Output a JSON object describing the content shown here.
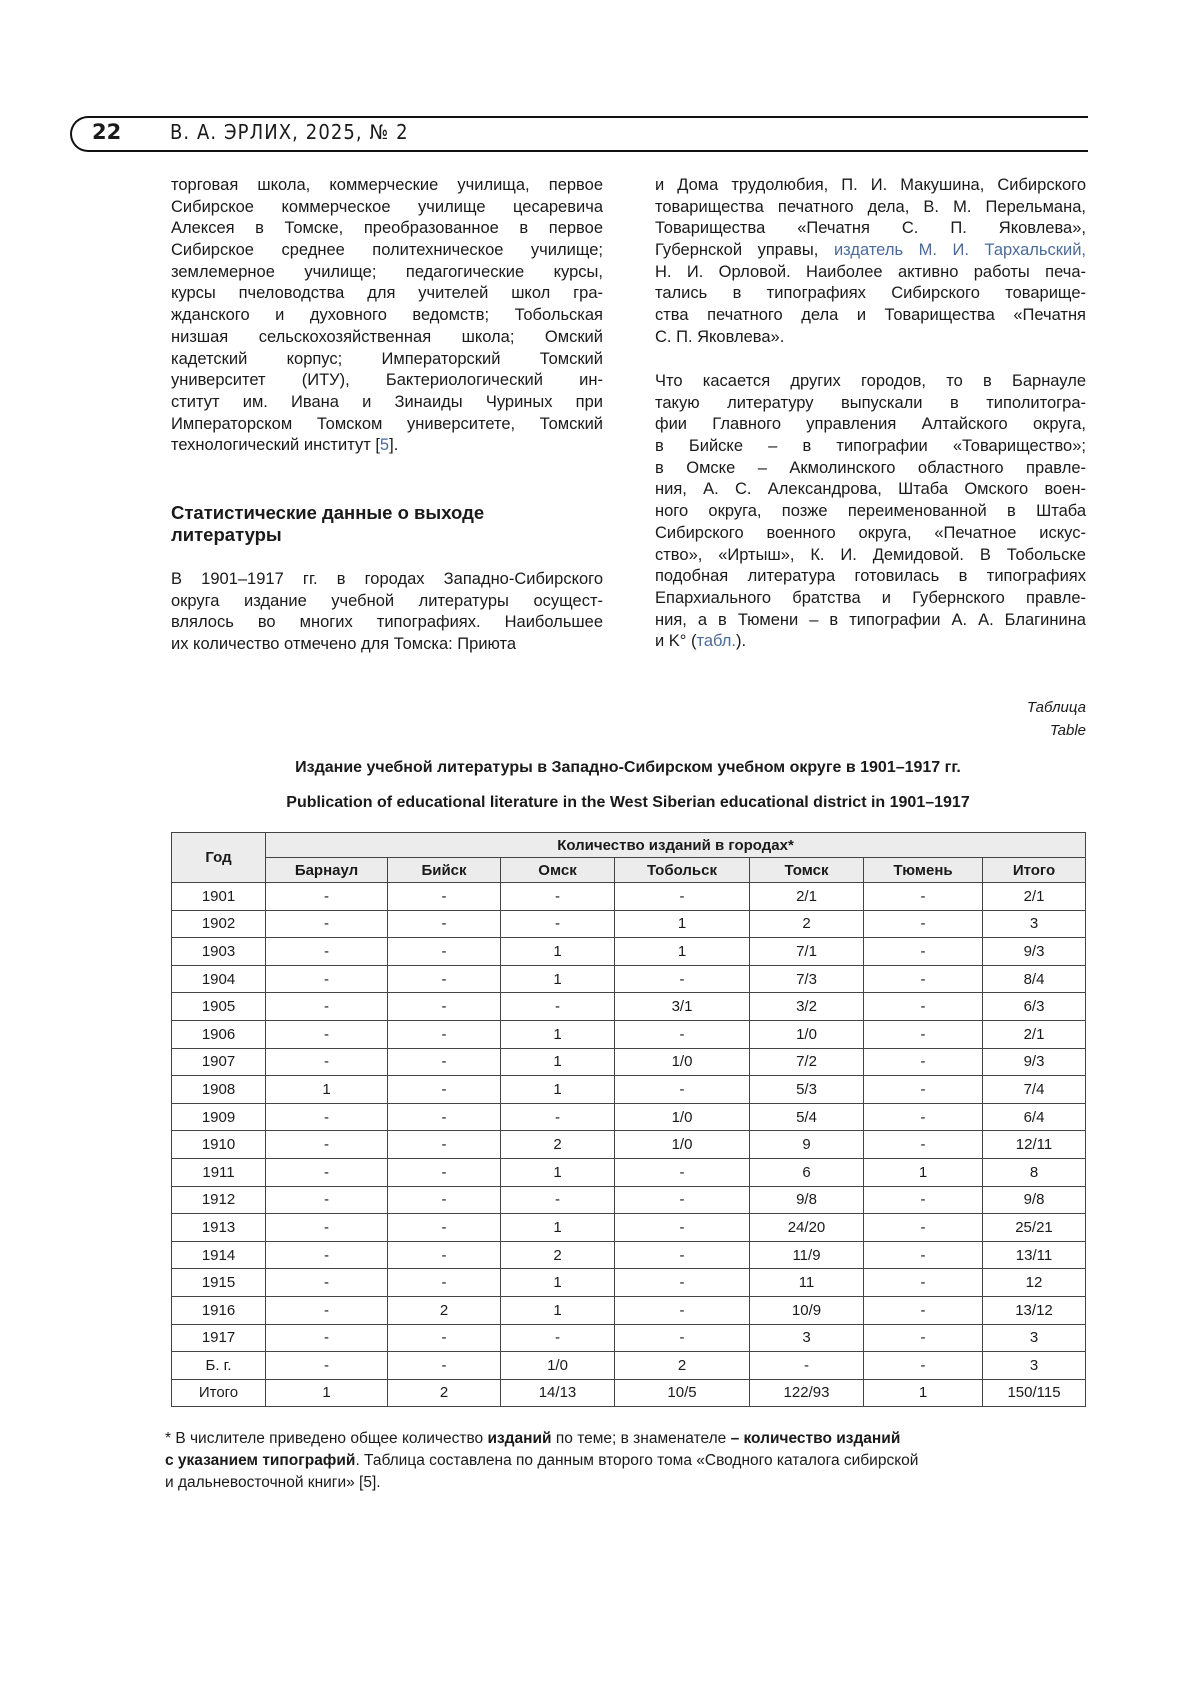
{
  "header": {
    "page_number": "22",
    "running_title": "В. А. ЭРЛИХ, 2025, № 2"
  },
  "left_column": {
    "p1": [
      [
        {
          "t": "торговая школа, коммерческие училища, первое"
        }
      ],
      [
        {
          "t": "Сибирское коммерческое училище цесаревича"
        }
      ],
      [
        {
          "t": "Алексея в Томске, преобразованное в первое"
        }
      ],
      [
        {
          "t": "Сибирское среднее политехническое училище;"
        }
      ],
      [
        {
          "t": "землемерное училище; педагогические курсы,"
        }
      ],
      [
        {
          "t": "курсы пчеловодства для учителей школ гра-"
        }
      ],
      [
        {
          "t": "жданского и духовного ведомств; Тобольская"
        }
      ],
      [
        {
          "t": "низшая сельскохозяйственная школа; Омский"
        }
      ],
      [
        {
          "t": "кадетский корпус; Императорский Томский"
        }
      ],
      [
        {
          "t": "университет (ИТУ), Бактериологический ин-"
        }
      ],
      [
        {
          "t": "ститут им. Ивана и Зинаиды Чуриных при"
        }
      ],
      [
        {
          "t": "Императорском Томском университете, Томский"
        }
      ],
      [
        {
          "t": "технологический институт ["
        },
        {
          "t": "5",
          "link": true
        },
        {
          "t": "]."
        }
      ]
    ],
    "heading": [
      "Статистические данные о выходе",
      "литературы"
    ],
    "p2": [
      [
        {
          "t": "В 1901–1917 гг. в городах Западно-Сибирского"
        }
      ],
      [
        {
          "t": "округа издание учебной литературы осущест-"
        }
      ],
      [
        {
          "t": "влялось во многих типографиях. Наибольшее"
        }
      ],
      [
        {
          "t": "их количество отмечено для Томска: Приюта"
        }
      ]
    ]
  },
  "right_column": {
    "p1": [
      [
        {
          "t": "и Дома трудолюбия, П. И. Макушина, Сибирского"
        }
      ],
      [
        {
          "t": "товарищества печатного дела, В. М. Перельмана,"
        }
      ],
      [
        {
          "t": "Товарищества «Печатня С. П. Яковлева»,"
        }
      ],
      [
        {
          "t": "Губернской управы, "
        },
        {
          "t": "издатель М. И. Тархальский,",
          "link": true
        }
      ],
      [
        {
          "t": "Н. И. Орловой. Наиболее активно работы печа-"
        }
      ],
      [
        {
          "t": "тались в типографиях Сибирского товарище-"
        }
      ],
      [
        {
          "t": "ства печатного дела и Товарищества «Печатня"
        }
      ],
      [
        {
          "t": "С. П. Яковлева»."
        }
      ]
    ],
    "p2": [
      [
        {
          "t": "Что касается других городов, то в Барнауле"
        }
      ],
      [
        {
          "t": "такую литературу выпускали в типолитогра-"
        }
      ],
      [
        {
          "t": "фии Главного управления Алтайского округа,"
        }
      ],
      [
        {
          "t": "в Бийске – в типографии «Товарищество»;"
        }
      ],
      [
        {
          "t": "в Омске – Акмолинского областного правле-"
        }
      ],
      [
        {
          "t": "ния, А. С. Александрова, Штаба Омского воен-"
        }
      ],
      [
        {
          "t": "ного округа, позже переименованной в Штаба"
        }
      ],
      [
        {
          "t": "Сибирского военного округа, «Печатное искус-"
        }
      ],
      [
        {
          "t": "ство», «Иртыш», К. И. Демидовой. В Тобольске"
        }
      ],
      [
        {
          "t": "подобная литература готовилась в типографиях"
        }
      ],
      [
        {
          "t": "Епархиального братства и Губернского правле-"
        }
      ],
      [
        {
          "t": "ния, а в Тюмени – в типографии А. А. Благинина"
        }
      ],
      [
        {
          "t": "и K° ("
        },
        {
          "t": "табл.",
          "link": true
        },
        {
          "t": ")."
        }
      ]
    ]
  },
  "table_block": {
    "label_ru": "Таблица",
    "label_en": "Table",
    "title_ru": "Издание учебной литературы в Западно-Сибирском учебном округе в 1901–1917 гг.",
    "title_en": "Publication of educational literature in the West Siberian educational district in 1901–1917",
    "col_year": "Год",
    "group_header": "Количество изданий в городах*",
    "columns": [
      "Барнаул",
      "Бийск",
      "Омск",
      "Тобольск",
      "Томск",
      "Тюмень",
      "Итого"
    ],
    "rows": [
      [
        "1901",
        "-",
        "-",
        "-",
        "-",
        "2/1",
        "-",
        "2/1"
      ],
      [
        "1902",
        "-",
        "-",
        "-",
        "1",
        "2",
        "-",
        "3"
      ],
      [
        "1903",
        "-",
        "-",
        "1",
        "1",
        "7/1",
        "-",
        "9/3"
      ],
      [
        "1904",
        "-",
        "-",
        "1",
        "-",
        "7/3",
        "-",
        "8/4"
      ],
      [
        "1905",
        "-",
        "-",
        "-",
        "3/1",
        "3/2",
        "-",
        "6/3"
      ],
      [
        "1906",
        "-",
        "-",
        "1",
        "-",
        "1/0",
        "-",
        "2/1"
      ],
      [
        "1907",
        "-",
        "-",
        "1",
        "1/0",
        "7/2",
        "-",
        "9/3"
      ],
      [
        "1908",
        "1",
        "-",
        "1",
        "-",
        "5/3",
        "-",
        "7/4"
      ],
      [
        "1909",
        "-",
        "-",
        "-",
        "1/0",
        "5/4",
        "-",
        "6/4"
      ],
      [
        "1910",
        "-",
        "-",
        "2",
        "1/0",
        "9",
        "-",
        "12/11"
      ],
      [
        "1911",
        "-",
        "-",
        "1",
        "-",
        "6",
        "1",
        "8"
      ],
      [
        "1912",
        "-",
        "-",
        "-",
        "-",
        "9/8",
        "-",
        "9/8"
      ],
      [
        "1913",
        "-",
        "-",
        "1",
        "-",
        "24/20",
        "-",
        "25/21"
      ],
      [
        "1914",
        "-",
        "-",
        "2",
        "-",
        "11/9",
        "-",
        "13/11"
      ],
      [
        "1915",
        "-",
        "-",
        "1",
        "-",
        "11",
        "-",
        "12"
      ],
      [
        "1916",
        "-",
        "2",
        "1",
        "-",
        "10/9",
        "-",
        "13/12"
      ],
      [
        "1917",
        "-",
        "-",
        "-",
        "-",
        "3",
        "-",
        "3"
      ],
      [
        "Б. г.",
        "-",
        "-",
        "1/0",
        "2",
        "-",
        "-",
        "3"
      ],
      [
        "Итого",
        "1",
        "2",
        "14/13",
        "10/5",
        "122/93",
        "1",
        "150/115"
      ]
    ]
  },
  "footnote": [
    [
      {
        "t": "* В числителе приведено общее количество "
      },
      {
        "t": "изданий",
        "b": true
      },
      {
        "t": " по теме; в знаменателе "
      },
      {
        "t": "– количество изданий",
        "b": true
      }
    ],
    [
      {
        "t": " "
      },
      {
        "t": "с указанием типографий",
        "b": true
      },
      {
        "t": ". Таблица составлена по данным второго тома «Сводного каталога сибирской"
      }
    ],
    [
      {
        "t": " и дальневосточной книги» [5]."
      }
    ]
  ],
  "colors": {
    "link": "#4a6b98",
    "table_header_bg": "#ececec"
  }
}
